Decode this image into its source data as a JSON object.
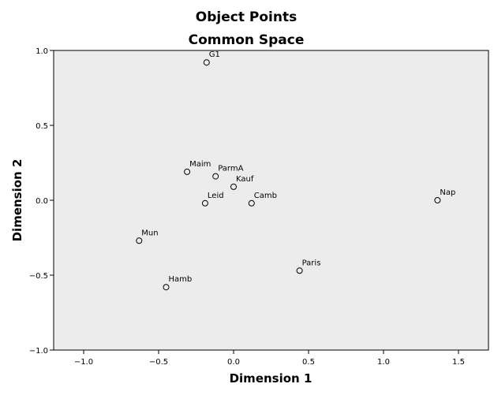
{
  "chart_data": {
    "type": "scatter",
    "title": "Object Points",
    "subtitle": "Common Space",
    "xlabel": "Dimension 1",
    "ylabel": "Dimension 2",
    "xlim": [
      -1.2,
      1.7
    ],
    "ylim": [
      -1.0,
      1.0
    ],
    "xticks": [
      -1.0,
      -0.5,
      0.0,
      0.5,
      1.0,
      1.5
    ],
    "xtick_labels": [
      "−1.0",
      "−0.5",
      "0.0",
      "0.5",
      "1.0",
      "1.5"
    ],
    "yticks": [
      -1.0,
      -0.5,
      0.0,
      0.5,
      1.0
    ],
    "ytick_labels": [
      "−1.0",
      "−0.5",
      "0.0",
      "0.5",
      "1.0"
    ],
    "grid": false,
    "background": "#ececec",
    "marker": "open-circle",
    "points": [
      {
        "label": "G1",
        "x": -0.18,
        "y": 0.92
      },
      {
        "label": "Maim",
        "x": -0.31,
        "y": 0.19
      },
      {
        "label": "ParmA",
        "x": -0.12,
        "y": 0.16
      },
      {
        "label": "Kauf",
        "x": 0.0,
        "y": 0.09
      },
      {
        "label": "Leid",
        "x": -0.19,
        "y": -0.02
      },
      {
        "label": "Camb",
        "x": 0.12,
        "y": -0.02
      },
      {
        "label": "Nap",
        "x": 1.36,
        "y": 0.0
      },
      {
        "label": "Mun",
        "x": -0.63,
        "y": -0.27
      },
      {
        "label": "Paris",
        "x": 0.44,
        "y": -0.47
      },
      {
        "label": "Hamb",
        "x": -0.45,
        "y": -0.58
      }
    ]
  }
}
